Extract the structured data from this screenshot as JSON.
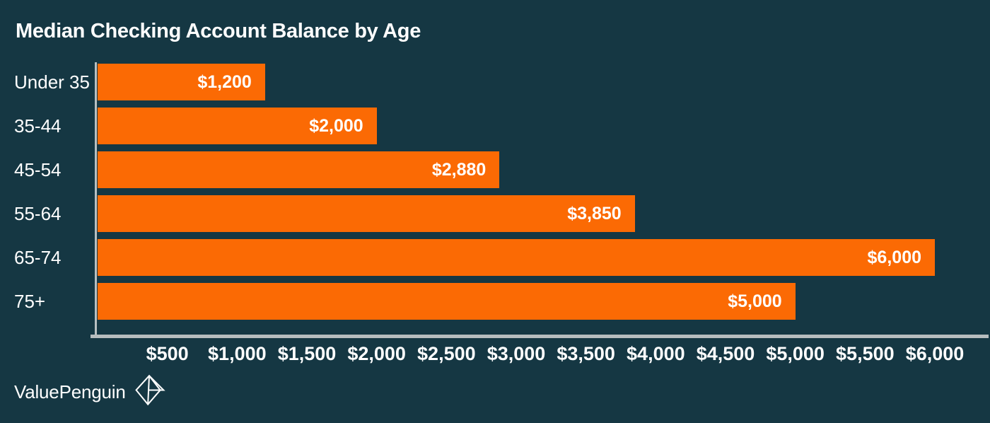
{
  "chart_data": {
    "type": "bar",
    "orientation": "horizontal",
    "title": "Median Checking Account Balance by Age",
    "categories": [
      "Under 35",
      "35-44",
      "45-54",
      "55-64",
      "65-74",
      "75+"
    ],
    "values": [
      1200,
      2000,
      2880,
      3850,
      6000,
      5000
    ],
    "value_labels": [
      "$1,200",
      "$2,000",
      "$2,880",
      "$3,850",
      "$6,000",
      "$5,000"
    ],
    "x_ticks": [
      "$500",
      "$1,000",
      "$1,500",
      "$2,000",
      "$2,500",
      "$3,000",
      "$3,500",
      "$4,000",
      "$4,500",
      "$5,000",
      "$5,500",
      "$6,000"
    ],
    "xlim": [
      0,
      6000
    ],
    "xlabel": "",
    "ylabel": "",
    "grid": false,
    "legend": false,
    "bar_label_position": "inside-end"
  },
  "branding": {
    "logo_text": "ValuePenguin",
    "logo_icon": "origami-penguin-icon"
  },
  "colors": {
    "background": "#153743",
    "bar": "#FB6A04",
    "text": "#FFFFFF",
    "axis_line": "#B7BDBF"
  }
}
